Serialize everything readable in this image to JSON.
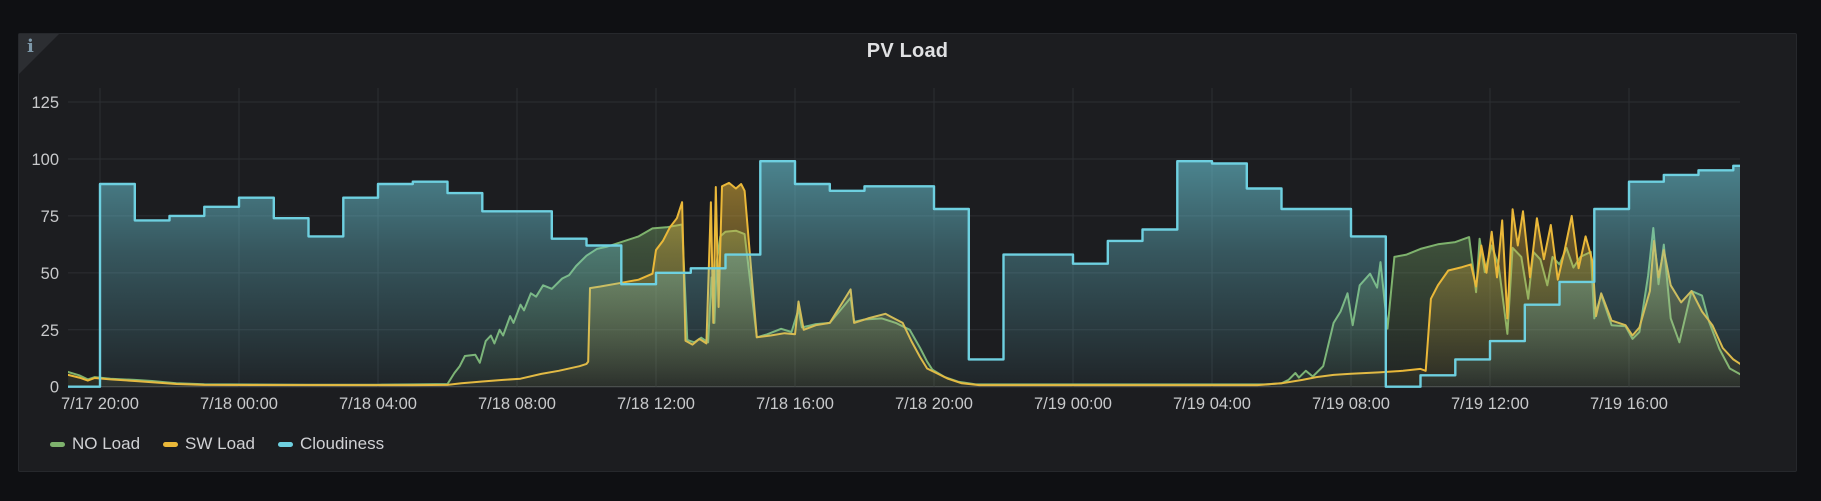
{
  "panel": {
    "title": "PV Load",
    "info_icon": "i"
  },
  "legend": {
    "items": [
      {
        "label": "NO Load",
        "color": "#7EB26D"
      },
      {
        "label": "SW Load",
        "color": "#EAB839"
      },
      {
        "label": "Cloudiness",
        "color": "#6ED0E0"
      }
    ]
  },
  "colors": {
    "page_bg": "#0f1013",
    "panel_bg": "#1c1d20",
    "grid": "#2c2e32",
    "axis_line": "#4e5054",
    "tick_text": "#c8c9cb",
    "green": "#7EB26D",
    "yellow": "#EAB839",
    "cyan": "#6ED0E0"
  },
  "chart_data": {
    "type": "area",
    "title": "PV Load",
    "x_unit": "hours_since_7/17_20:00",
    "xlim": [
      -0.92,
      47.2
    ],
    "ylim": [
      0,
      131
    ],
    "grid": true,
    "legend_position": "bottom-left",
    "y_ticks": [
      0,
      25,
      50,
      75,
      100,
      125
    ],
    "y_tick_labels": [
      "0",
      "25",
      "50",
      "75",
      "100",
      "125"
    ],
    "x_tick_hours": [
      0,
      4,
      8,
      12,
      16,
      20,
      24,
      28,
      32,
      36,
      40,
      44
    ],
    "x_tick_labels": [
      "7/17 20:00",
      "7/18 00:00",
      "7/18 04:00",
      "7/18 08:00",
      "7/18 12:00",
      "7/18 16:00",
      "7/18 20:00",
      "7/19 00:00",
      "7/19 04:00",
      "7/19 08:00",
      "7/19 12:00",
      "7/19 16:00"
    ],
    "series": [
      {
        "name": "NO Load",
        "color": "#7EB26D",
        "mode": "line",
        "width": 2,
        "points": [
          [
            -0.92,
            6.5
          ],
          [
            -0.6,
            5
          ],
          [
            -0.35,
            3.2
          ],
          [
            -0.15,
            4.2
          ],
          [
            0.3,
            3.5
          ],
          [
            1,
            3
          ],
          [
            1.5,
            2.5
          ],
          [
            2.2,
            1.5
          ],
          [
            3,
            1.1
          ],
          [
            6,
            0.9
          ],
          [
            8,
            0.9
          ],
          [
            9,
            1
          ],
          [
            10,
            1.2
          ],
          [
            10.2,
            6
          ],
          [
            10.35,
            9
          ],
          [
            10.5,
            13.5
          ],
          [
            10.8,
            14
          ],
          [
            10.93,
            10.5
          ],
          [
            11.1,
            20
          ],
          [
            11.25,
            22.5
          ],
          [
            11.35,
            19
          ],
          [
            11.5,
            25
          ],
          [
            11.6,
            22.5
          ],
          [
            11.8,
            31
          ],
          [
            11.9,
            28
          ],
          [
            12.1,
            36
          ],
          [
            12.2,
            33.5
          ],
          [
            12.4,
            41
          ],
          [
            12.55,
            39.5
          ],
          [
            12.75,
            44.5
          ],
          [
            13,
            43
          ],
          [
            13.3,
            47.5
          ],
          [
            13.5,
            49
          ],
          [
            13.7,
            53
          ],
          [
            14,
            57.5
          ],
          [
            14.3,
            60.5
          ],
          [
            14.6,
            61.5
          ],
          [
            15,
            63.5
          ],
          [
            15.5,
            66
          ],
          [
            15.9,
            69.5
          ],
          [
            16.3,
            70
          ],
          [
            16.75,
            71.2
          ],
          [
            16.9,
            20.5
          ],
          [
            17.1,
            19.5
          ],
          [
            17.3,
            21.5
          ],
          [
            17.5,
            19.5
          ],
          [
            17.6,
            48
          ],
          [
            17.68,
            28
          ],
          [
            17.75,
            55
          ],
          [
            17.85,
            66
          ],
          [
            18,
            68
          ],
          [
            18.3,
            68.5
          ],
          [
            18.55,
            67
          ],
          [
            18.9,
            21.7
          ],
          [
            19.2,
            23
          ],
          [
            19.6,
            25.4
          ],
          [
            19.9,
            24
          ],
          [
            20.1,
            34
          ],
          [
            20.2,
            26
          ],
          [
            20.6,
            27.5
          ],
          [
            21,
            28
          ],
          [
            21.6,
            39
          ],
          [
            21.7,
            28.5
          ],
          [
            22,
            29.5
          ],
          [
            22.5,
            30
          ],
          [
            22.9,
            28
          ],
          [
            23.3,
            25
          ],
          [
            23.6,
            17
          ],
          [
            23.8,
            11
          ],
          [
            23.95,
            7.5
          ],
          [
            24.3,
            4.3
          ],
          [
            24.7,
            2.2
          ],
          [
            25.2,
            1
          ],
          [
            33.5,
            1
          ],
          [
            34,
            1.5
          ],
          [
            34.2,
            3
          ],
          [
            34.4,
            6
          ],
          [
            34.5,
            4
          ],
          [
            34.7,
            7
          ],
          [
            34.9,
            4.5
          ],
          [
            35.2,
            9
          ],
          [
            35.5,
            28
          ],
          [
            35.7,
            33
          ],
          [
            35.9,
            41
          ],
          [
            36.05,
            27
          ],
          [
            36.25,
            44.5
          ],
          [
            36.55,
            49.6
          ],
          [
            36.75,
            43.5
          ],
          [
            36.85,
            54.7
          ],
          [
            37.05,
            25.5
          ],
          [
            37.25,
            57
          ],
          [
            37.6,
            58
          ],
          [
            38,
            60.5
          ],
          [
            38.5,
            62.5
          ],
          [
            39,
            63.5
          ],
          [
            39.4,
            65.7
          ],
          [
            39.6,
            41.5
          ],
          [
            39.7,
            65
          ],
          [
            39.85,
            50.3
          ],
          [
            40.05,
            62
          ],
          [
            40.25,
            53
          ],
          [
            40.5,
            23.2
          ],
          [
            40.65,
            61
          ],
          [
            40.9,
            57
          ],
          [
            41.1,
            38.6
          ],
          [
            41.25,
            59.2
          ],
          [
            41.45,
            55.9
          ],
          [
            41.65,
            44.5
          ],
          [
            41.8,
            57
          ],
          [
            42,
            53.7
          ],
          [
            42.2,
            61
          ],
          [
            42.4,
            52.3
          ],
          [
            42.6,
            57
          ],
          [
            42.9,
            59.2
          ],
          [
            43,
            30
          ],
          [
            43.2,
            40.4
          ],
          [
            43.5,
            27
          ],
          [
            43.9,
            26.5
          ],
          [
            44.1,
            21
          ],
          [
            44.3,
            24
          ],
          [
            44.55,
            48.8
          ],
          [
            44.7,
            69.7
          ],
          [
            44.85,
            45
          ],
          [
            45,
            62.4
          ],
          [
            45.2,
            30
          ],
          [
            45.45,
            19.5
          ],
          [
            45.8,
            42
          ],
          [
            46.1,
            40
          ],
          [
            46.3,
            28.7
          ],
          [
            46.6,
            16.6
          ],
          [
            46.9,
            8
          ],
          [
            47.2,
            5.5
          ]
        ]
      },
      {
        "name": "SW Load",
        "color": "#EAB839",
        "mode": "line",
        "width": 2,
        "points": [
          [
            -0.92,
            5.2
          ],
          [
            -0.6,
            4
          ],
          [
            -0.35,
            2.7
          ],
          [
            -0.15,
            3.8
          ],
          [
            0.3,
            3.2
          ],
          [
            1,
            2.5
          ],
          [
            2.2,
            1.2
          ],
          [
            3,
            0.8
          ],
          [
            9,
            0.7
          ],
          [
            10,
            0.8
          ],
          [
            10.4,
            1.5
          ],
          [
            11,
            2.3
          ],
          [
            11.6,
            3
          ],
          [
            12.1,
            3.5
          ],
          [
            12.7,
            5.6
          ],
          [
            13.2,
            7
          ],
          [
            13.8,
            9
          ],
          [
            14,
            10
          ],
          [
            14.05,
            11
          ],
          [
            14.1,
            43.3
          ],
          [
            14.4,
            44
          ],
          [
            15,
            45.6
          ],
          [
            15.5,
            47
          ],
          [
            15.9,
            49.6
          ],
          [
            16,
            60
          ],
          [
            16.2,
            64
          ],
          [
            16.4,
            70
          ],
          [
            16.6,
            74
          ],
          [
            16.75,
            81
          ],
          [
            16.85,
            20.2
          ],
          [
            17.05,
            18.5
          ],
          [
            17.25,
            21
          ],
          [
            17.45,
            19
          ],
          [
            17.58,
            81
          ],
          [
            17.65,
            28
          ],
          [
            17.72,
            87.7
          ],
          [
            17.8,
            35
          ],
          [
            17.9,
            88
          ],
          [
            18.1,
            89.5
          ],
          [
            18.3,
            87
          ],
          [
            18.45,
            89
          ],
          [
            18.55,
            86
          ],
          [
            18.9,
            21.7
          ],
          [
            19.3,
            22.5
          ],
          [
            19.7,
            23.5
          ],
          [
            20,
            23
          ],
          [
            20.1,
            37.4
          ],
          [
            20.25,
            25
          ],
          [
            20.6,
            27
          ],
          [
            21,
            28
          ],
          [
            21.6,
            42.7
          ],
          [
            21.7,
            28
          ],
          [
            22.1,
            30
          ],
          [
            22.6,
            32
          ],
          [
            23.1,
            28
          ],
          [
            23.35,
            20
          ],
          [
            23.6,
            13
          ],
          [
            23.8,
            8
          ],
          [
            24,
            6.5
          ],
          [
            24.4,
            3.5
          ],
          [
            24.8,
            1.5
          ],
          [
            25.3,
            0.7
          ],
          [
            33.3,
            0.7
          ],
          [
            34,
            1.5
          ],
          [
            34.6,
            3
          ],
          [
            35,
            4.2
          ],
          [
            35.5,
            5.2
          ],
          [
            36,
            5.7
          ],
          [
            36.8,
            6.3
          ],
          [
            37.5,
            7
          ],
          [
            38,
            7.8
          ],
          [
            38.15,
            7
          ],
          [
            38.3,
            38.6
          ],
          [
            38.5,
            44.5
          ],
          [
            38.8,
            51
          ],
          [
            39.2,
            52.5
          ],
          [
            39.45,
            53.7
          ],
          [
            39.6,
            44
          ],
          [
            39.75,
            62
          ],
          [
            39.9,
            50
          ],
          [
            40.05,
            68
          ],
          [
            40.2,
            48
          ],
          [
            40.35,
            73
          ],
          [
            40.5,
            30
          ],
          [
            40.65,
            77.9
          ],
          [
            40.8,
            62
          ],
          [
            40.95,
            77
          ],
          [
            41.15,
            48
          ],
          [
            41.35,
            74
          ],
          [
            41.55,
            56
          ],
          [
            41.75,
            71
          ],
          [
            41.95,
            47
          ],
          [
            42.15,
            60
          ],
          [
            42.35,
            75
          ],
          [
            42.55,
            52
          ],
          [
            42.75,
            66
          ],
          [
            42.95,
            55
          ],
          [
            43.05,
            31
          ],
          [
            43.2,
            41
          ],
          [
            43.5,
            29
          ],
          [
            43.9,
            27
          ],
          [
            44.1,
            22.5
          ],
          [
            44.3,
            26
          ],
          [
            44.6,
            42
          ],
          [
            44.72,
            64
          ],
          [
            44.85,
            48
          ],
          [
            45,
            60
          ],
          [
            45.2,
            44.5
          ],
          [
            45.5,
            37
          ],
          [
            45.8,
            42
          ],
          [
            46.1,
            33
          ],
          [
            46.4,
            27
          ],
          [
            46.7,
            17
          ],
          [
            47,
            12
          ],
          [
            47.2,
            10
          ]
        ]
      },
      {
        "name": "Cloudiness",
        "color": "#6ED0E0",
        "mode": "step",
        "width": 2.4,
        "points": [
          [
            -0.92,
            0
          ],
          [
            0,
            89
          ],
          [
            1,
            73
          ],
          [
            2,
            75
          ],
          [
            3,
            79
          ],
          [
            4,
            83
          ],
          [
            5,
            74
          ],
          [
            6,
            66
          ],
          [
            7,
            83
          ],
          [
            8,
            89
          ],
          [
            9,
            90
          ],
          [
            10,
            85
          ],
          [
            11,
            77
          ],
          [
            13,
            65
          ],
          [
            14,
            62
          ],
          [
            15,
            45
          ],
          [
            16,
            50
          ],
          [
            17,
            52
          ],
          [
            18,
            58
          ],
          [
            19,
            99
          ],
          [
            20,
            89
          ],
          [
            21,
            86
          ],
          [
            22,
            88
          ],
          [
            24,
            78
          ],
          [
            25,
            12
          ],
          [
            26,
            58
          ],
          [
            28,
            54
          ],
          [
            29,
            64
          ],
          [
            30,
            69
          ],
          [
            31,
            99
          ],
          [
            32,
            98
          ],
          [
            33,
            87
          ],
          [
            34,
            78
          ],
          [
            36,
            66
          ],
          [
            37,
            0
          ],
          [
            38,
            5
          ],
          [
            39,
            12
          ],
          [
            40,
            20
          ],
          [
            41,
            36
          ],
          [
            42,
            46
          ],
          [
            43,
            78
          ],
          [
            44,
            90
          ],
          [
            45,
            93
          ],
          [
            46,
            95
          ],
          [
            47,
            97
          ],
          [
            47.2,
            97
          ]
        ]
      }
    ]
  }
}
